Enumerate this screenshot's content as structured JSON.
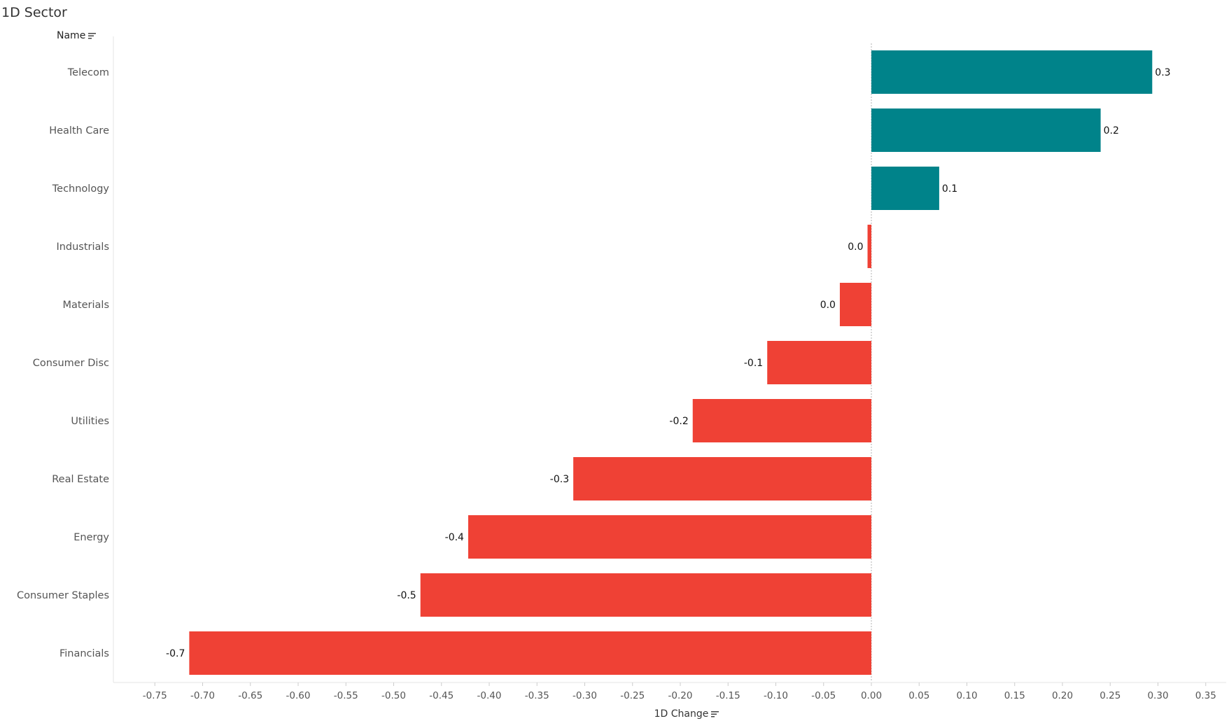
{
  "title": "1D Sector",
  "row_header": "Name",
  "x_axis_title": "1D Change",
  "icons": {
    "row_header_sort": "sort-icon",
    "x_axis_sort": "sort-icon"
  },
  "colors": {
    "positive": "#00838a",
    "negative": "#ef4135"
  },
  "chart_data": {
    "type": "bar",
    "orientation": "horizontal",
    "categories": [
      "Telecom",
      "Health Care",
      "Technology",
      "Industrials",
      "Materials",
      "Consumer Disc",
      "Utilities",
      "Real Estate",
      "Energy",
      "Consumer Staples",
      "Financials"
    ],
    "values": [
      0.294,
      0.24,
      0.071,
      -0.004,
      -0.033,
      -0.109,
      -0.187,
      -0.312,
      -0.422,
      -0.472,
      -0.714
    ],
    "data_labels": [
      "0.3",
      "0.2",
      "0.1",
      "0.0",
      "0.0",
      "-0.1",
      "-0.2",
      "-0.3",
      "-0.4",
      "-0.5",
      "-0.7"
    ],
    "xlabel": "1D Change",
    "ylabel": "Name",
    "xlim": [
      -0.79,
      0.37
    ],
    "x_ticks": [
      -0.75,
      -0.7,
      -0.65,
      -0.6,
      -0.55,
      -0.5,
      -0.45,
      -0.4,
      -0.35,
      -0.3,
      -0.25,
      -0.2,
      -0.15,
      -0.1,
      -0.05,
      0.0,
      0.05,
      0.1,
      0.15,
      0.2,
      0.25,
      0.3,
      0.35
    ],
    "x_tick_labels": [
      "-0.75",
      "-0.70",
      "-0.65",
      "-0.60",
      "-0.55",
      "-0.50",
      "-0.45",
      "-0.40",
      "-0.35",
      "-0.30",
      "-0.25",
      "-0.20",
      "-0.15",
      "-0.10",
      "-0.05",
      "0.00",
      "0.05",
      "0.10",
      "0.15",
      "0.20",
      "0.25",
      "0.30",
      "0.35"
    ],
    "grid": false,
    "legend": "none"
  }
}
